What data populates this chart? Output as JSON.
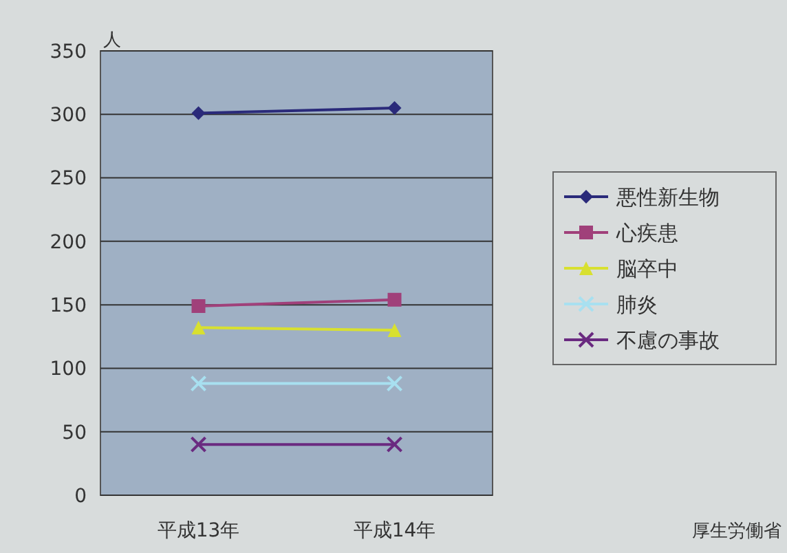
{
  "chart_data": {
    "type": "line",
    "ylabel": "人",
    "categories": [
      "平成13年",
      "平成14年"
    ],
    "series": [
      {
        "name": "悪性新生物",
        "color": "#2a2a7a",
        "marker": "diamond",
        "values": [
          301,
          305
        ]
      },
      {
        "name": "心疾患",
        "color": "#a0407a",
        "marker": "square",
        "values": [
          149,
          154
        ]
      },
      {
        "name": "脳卒中",
        "color": "#d8e030",
        "marker": "triangle",
        "values": [
          132,
          130
        ]
      },
      {
        "name": "肺炎",
        "color": "#a8e0f0",
        "marker": "cross",
        "values": [
          88,
          88
        ]
      },
      {
        "name": "不慮の事故",
        "color": "#6a2a80",
        "marker": "cross",
        "values": [
          40,
          40
        ]
      }
    ],
    "ylim": [
      0,
      350
    ],
    "yticks": [
      0,
      50,
      100,
      150,
      200,
      250,
      300,
      350
    ],
    "grid": "y",
    "legend": "right",
    "annotations": [
      "厚生労働省"
    ]
  }
}
